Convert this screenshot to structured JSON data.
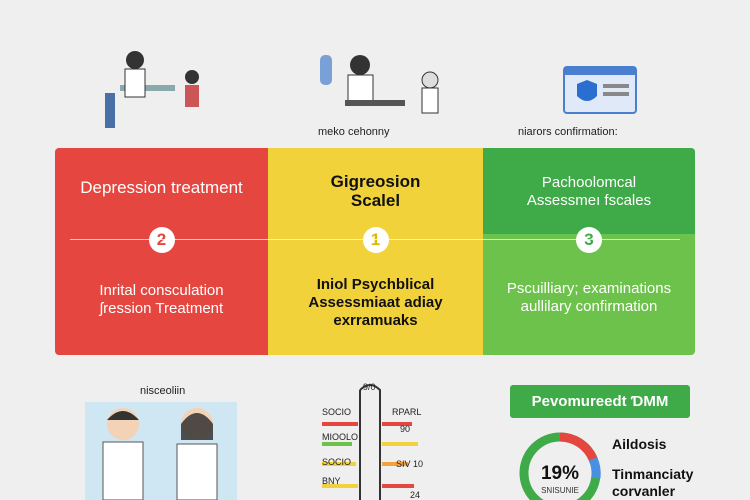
{
  "top": {
    "captions": [
      "meko cehonny",
      "niarors confirmation:"
    ]
  },
  "panels": [
    {
      "title": [
        "Depression treatment"
      ],
      "step": "2",
      "body": [
        "Inrital consculation",
        "ʃression Treatment"
      ]
    },
    {
      "title": [
        "Gigreosion",
        "Scalel"
      ],
      "step": "1",
      "body": [
        "Iniol Psychblical",
        "Assessmiaat adiay",
        "exrramuaks"
      ]
    },
    {
      "title": [
        "Pachoolomcal",
        "Assessmeı fscales"
      ],
      "step": "3",
      "body": [
        "Pscuilliary; examinations",
        "aullilary confirmation"
      ]
    }
  ],
  "bottom": {
    "illustration_label": "nisceoliin",
    "gauge": {
      "top": "9/0",
      "left": [
        "SOCIO",
        "MIOOLO",
        "SOCIO",
        "BNY"
      ],
      "right": [
        "RPARL",
        "90",
        "SIV 10",
        "24"
      ]
    },
    "badge": "Pevomureedt ƊMM",
    "donut": {
      "value": "19%",
      "sub": "SNISUNIE"
    },
    "legend": [
      "Aildosis",
      "Tinmanciaty",
      "corvanler"
    ]
  }
}
